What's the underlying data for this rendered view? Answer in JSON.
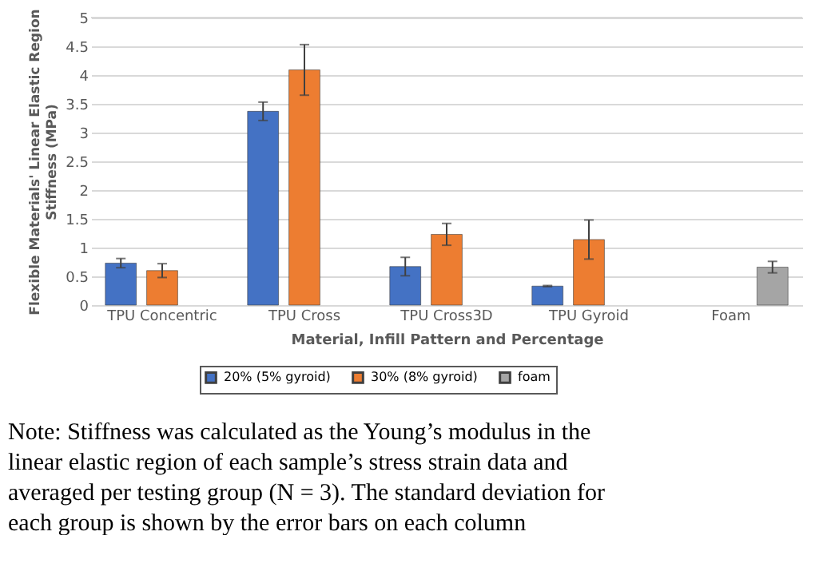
{
  "chart_data": {
    "type": "bar",
    "xlabel": "Material, Infill Pattern and Percentage",
    "ylabel": "Flexible Materials' Linear Elastic Region Stiffness (MPa)",
    "categories": [
      "TPU Concentric",
      "TPU Cross",
      "TPU Cross3D",
      "TPU Gyroid",
      "Foam"
    ],
    "series": [
      {
        "name": "20% (5% gyroid)",
        "color": "#4472c4",
        "values": [
          0.73,
          3.37,
          0.67,
          0.33,
          null
        ],
        "errors": [
          0.08,
          0.16,
          0.16,
          0.01,
          null
        ]
      },
      {
        "name": "30% (8% gyroid)",
        "color": "#ed7d31",
        "values": [
          0.6,
          4.09,
          1.23,
          1.14,
          null
        ],
        "errors": [
          0.12,
          0.44,
          0.19,
          0.34,
          null
        ]
      },
      {
        "name": "foam",
        "color": "#a5a5a5",
        "values": [
          null,
          null,
          null,
          null,
          0.66
        ],
        "errors": [
          null,
          null,
          null,
          null,
          0.1
        ]
      }
    ],
    "ylim": [
      0,
      5
    ],
    "yticks": [
      0,
      0.5,
      1,
      1.5,
      2,
      2.5,
      3,
      3.5,
      4,
      4.5,
      5
    ],
    "grid": "y",
    "legend": "bottom",
    "annotations": [
      "Note: Stiffness was calculated as the Young’s modulus in the linear elastic region of each sample’s stress strain data and averaged per testing group (N = 3). The standard deviation for each group is shown by the error bars on each column"
    ]
  }
}
